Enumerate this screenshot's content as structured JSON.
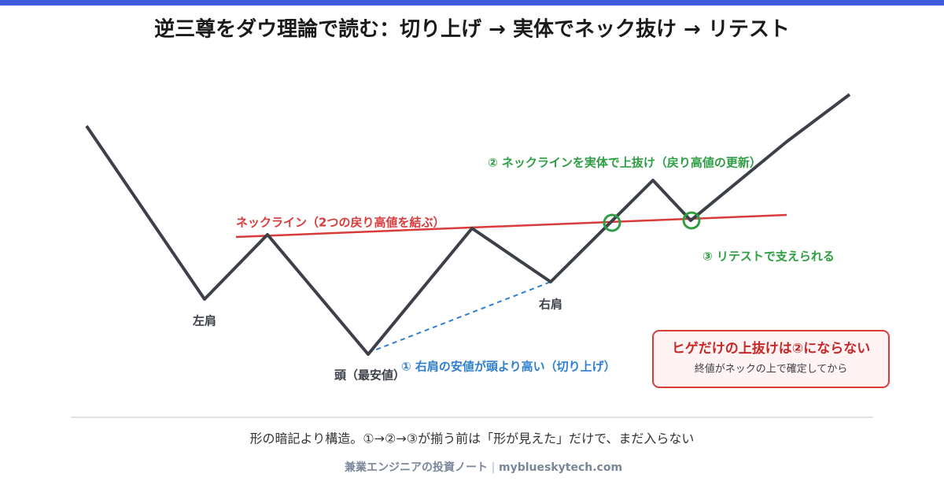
{
  "header": {
    "title": "逆三尊をダウ理論で読む：切り上げ → 実体でネック抜け → リテスト"
  },
  "diagram": {
    "neckline": "ネックライン（2つの戻り高値を結ぶ）",
    "left_shoulder": "左肩",
    "head": "頭（最安値）",
    "right_shoulder": "右肩",
    "step1": "① 右肩の安値が頭より高い（切り上げ）",
    "step2": "② ネックラインを実体で上抜け（戻り高値の更新）",
    "step3": "③ リテストで支えられる"
  },
  "warning": {
    "title": "ヒゲだけの上抜けは②にならない",
    "text": "終値がネックの上で確定してから"
  },
  "footer": {
    "caption": "形の暗記より構造。①→②→③が揃う前は「形が見えた」だけで、まだ入らない",
    "credit": "兼業エンジニアの投資ノート",
    "separator": "|",
    "site": "myblueskytech.com"
  }
}
